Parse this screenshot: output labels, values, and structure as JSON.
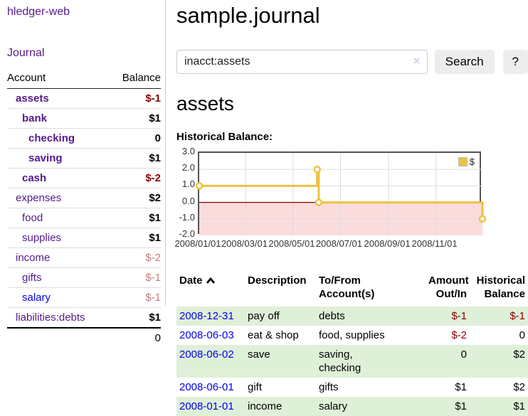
{
  "app": {
    "title": "hledger-web"
  },
  "nav": {
    "journal": "Journal"
  },
  "sidebar": {
    "header": {
      "account": "Account",
      "balance": "Balance"
    },
    "accounts": [
      {
        "name": "assets",
        "balance": "$-1",
        "depth": 1,
        "matched": true,
        "bal_style": "neg"
      },
      {
        "name": "bank",
        "balance": "$1",
        "depth": 2,
        "matched": true,
        "bal_style": "pos"
      },
      {
        "name": "checking",
        "balance": "0",
        "depth": 3,
        "matched": true,
        "bal_style": "pos"
      },
      {
        "name": "saving",
        "balance": "$1",
        "depth": 3,
        "matched": true,
        "bal_style": "pos"
      },
      {
        "name": "cash",
        "balance": "$-2",
        "depth": 2,
        "matched": true,
        "bal_style": "neg"
      },
      {
        "name": "expenses",
        "balance": "$2",
        "depth": 1,
        "matched": false,
        "bal_style": "pos"
      },
      {
        "name": "food",
        "balance": "$1",
        "depth": 2,
        "matched": false,
        "bal_style": "pos"
      },
      {
        "name": "supplies",
        "balance": "$1",
        "depth": 2,
        "matched": false,
        "bal_style": "pos"
      },
      {
        "name": "income",
        "balance": "$-2",
        "depth": 1,
        "matched": false,
        "bal_style": "negsoft"
      },
      {
        "name": "gifts",
        "balance": "$-1",
        "depth": 2,
        "matched": false,
        "bal_style": "negsoft"
      },
      {
        "name": "salary",
        "balance": "$-1",
        "depth": 2,
        "matched": false,
        "bal_style": "negsoft",
        "link_color": "blue"
      },
      {
        "name": "liabilities:debts",
        "balance": "$1",
        "depth": 1,
        "matched": false,
        "bal_style": "pos"
      }
    ],
    "total": "0"
  },
  "main": {
    "title": "sample.journal",
    "search": {
      "value": "inacct:assets",
      "clear_icon": "×",
      "search_button": "Search",
      "help_button": "?"
    },
    "section_title": "assets",
    "chart_title": "Historical Balance:"
  },
  "chart_data": {
    "type": "line",
    "step": true,
    "title": "Historical Balance",
    "series": [
      {
        "name": "$",
        "color": "#edc240",
        "points": [
          [
            "2008-01-01",
            1.0
          ],
          [
            "2008-06-01",
            2.0
          ],
          [
            "2008-06-03",
            0.0
          ],
          [
            "2008-12-31",
            -1.0
          ]
        ]
      }
    ],
    "legend": {
      "label": "$",
      "position": "top-right"
    },
    "xmin": "2008-01-01",
    "xmax": "2008-12-31",
    "ylim": [
      -2.0,
      3.0
    ],
    "yticks": [
      "3.0",
      "2.0",
      "1.0",
      "0.0",
      "-1.0",
      "-2.0"
    ],
    "xticks": [
      "2008/01/01",
      "2008/03/01",
      "2008/05/01",
      "2008/07/01",
      "2008/09/01",
      "2008/11/01"
    ],
    "grid": true,
    "colors": {
      "line": "#edc240",
      "marker_fill": "#ffffff",
      "negative_region": "#fbdcdc",
      "zero_line": "#8b0000",
      "grid": "#dddddd",
      "border": "#545454"
    }
  },
  "register": {
    "headers": {
      "date": "Date",
      "description": "Description",
      "accounts_line1": "To/From",
      "accounts_line2": "Account(s)",
      "amount_line1": "Amount",
      "amount_line2": "Out/In",
      "balance_line1": "Historical",
      "balance_line2": "Balance"
    },
    "rows": [
      {
        "date": "2008-12-31",
        "description": "pay off",
        "accounts": "debts",
        "amount": "$-1",
        "amount_neg": true,
        "balance": "$-1",
        "balance_neg": true
      },
      {
        "date": "2008-06-03",
        "description": "eat & shop",
        "accounts": "food, supplies",
        "amount": "$-2",
        "amount_neg": true,
        "balance": "0",
        "balance_neg": false
      },
      {
        "date": "2008-06-02",
        "description": "save",
        "accounts": "saving,\nchecking",
        "amount": "0",
        "amount_neg": false,
        "balance": "$2",
        "balance_neg": false
      },
      {
        "date": "2008-06-01",
        "description": "gift",
        "accounts": "gifts",
        "amount": "$1",
        "amount_neg": false,
        "balance": "$2",
        "balance_neg": false
      },
      {
        "date": "2008-01-01",
        "description": "income",
        "accounts": "salary",
        "amount": "$1",
        "amount_neg": false,
        "balance": "$1",
        "balance_neg": false
      }
    ]
  }
}
